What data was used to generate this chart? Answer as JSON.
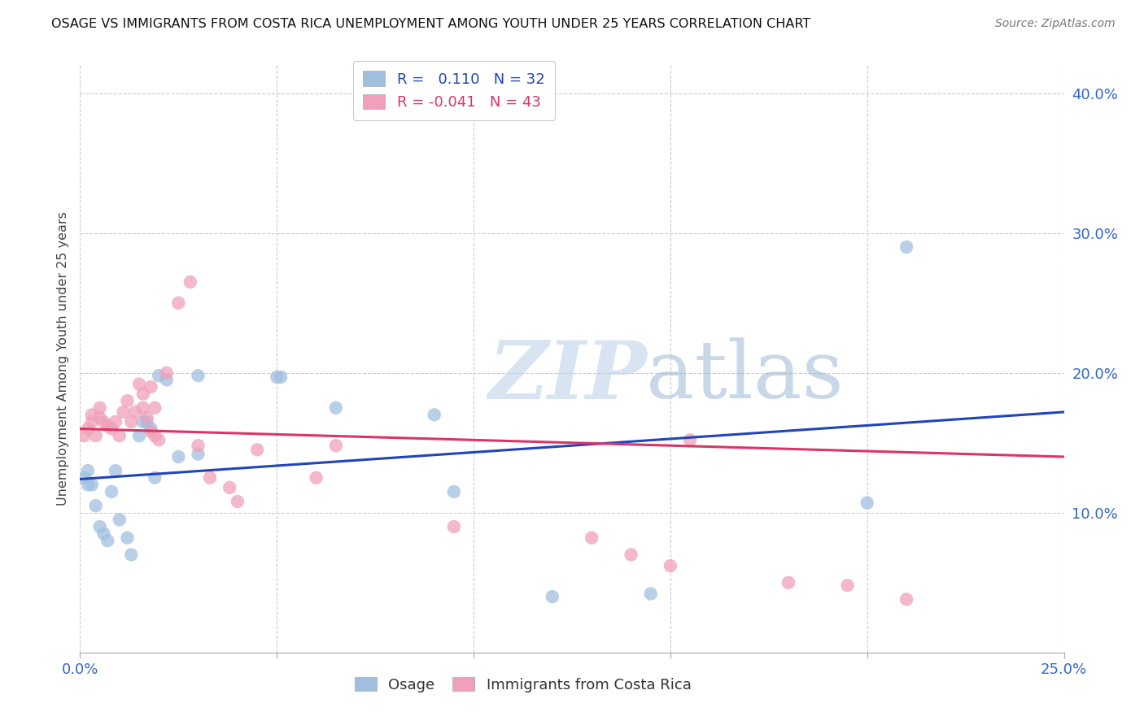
{
  "title": "OSAGE VS IMMIGRANTS FROM COSTA RICA UNEMPLOYMENT AMONG YOUTH UNDER 25 YEARS CORRELATION CHART",
  "source": "Source: ZipAtlas.com",
  "ylabel": "Unemployment Among Youth under 25 years",
  "xlim": [
    0.0,
    0.25
  ],
  "ylim": [
    0.0,
    0.42
  ],
  "xticks": [
    0.0,
    0.05,
    0.1,
    0.15,
    0.2,
    0.25
  ],
  "yticks": [
    0.0,
    0.1,
    0.2,
    0.3,
    0.4
  ],
  "xtick_labels": [
    "0.0%",
    "",
    "",
    "",
    "",
    "25.0%"
  ],
  "ytick_labels": [
    "",
    "10.0%",
    "20.0%",
    "30.0%",
    "40.0%"
  ],
  "blue_color": "#a0bfdf",
  "pink_color": "#f0a0b8",
  "blue_line_color": "#2244bb",
  "pink_line_color": "#dd3366",
  "watermark_zip": "ZIP",
  "watermark_atlas": "atlas",
  "osage_x": [
    0.001,
    0.002,
    0.002,
    0.003,
    0.004,
    0.005,
    0.006,
    0.007,
    0.008,
    0.009,
    0.01,
    0.012,
    0.013,
    0.015,
    0.016,
    0.017,
    0.018,
    0.019,
    0.02,
    0.022,
    0.025,
    0.03,
    0.03,
    0.05,
    0.051,
    0.065,
    0.09,
    0.095,
    0.12,
    0.145,
    0.2,
    0.21
  ],
  "osage_y": [
    0.125,
    0.12,
    0.13,
    0.12,
    0.105,
    0.09,
    0.085,
    0.08,
    0.115,
    0.13,
    0.095,
    0.082,
    0.07,
    0.155,
    0.165,
    0.165,
    0.16,
    0.125,
    0.198,
    0.195,
    0.14,
    0.198,
    0.142,
    0.197,
    0.197,
    0.175,
    0.17,
    0.115,
    0.04,
    0.042,
    0.107,
    0.29
  ],
  "costarica_x": [
    0.001,
    0.002,
    0.003,
    0.003,
    0.004,
    0.005,
    0.005,
    0.006,
    0.007,
    0.008,
    0.009,
    0.01,
    0.011,
    0.012,
    0.013,
    0.014,
    0.015,
    0.016,
    0.016,
    0.017,
    0.018,
    0.018,
    0.019,
    0.019,
    0.02,
    0.022,
    0.025,
    0.028,
    0.03,
    0.033,
    0.038,
    0.04,
    0.045,
    0.06,
    0.065,
    0.095,
    0.13,
    0.14,
    0.15,
    0.155,
    0.18,
    0.195,
    0.21
  ],
  "costarica_y": [
    0.155,
    0.16,
    0.17,
    0.165,
    0.155,
    0.168,
    0.175,
    0.165,
    0.162,
    0.16,
    0.165,
    0.155,
    0.172,
    0.18,
    0.165,
    0.172,
    0.192,
    0.175,
    0.185,
    0.168,
    0.158,
    0.19,
    0.155,
    0.175,
    0.152,
    0.2,
    0.25,
    0.265,
    0.148,
    0.125,
    0.118,
    0.108,
    0.145,
    0.125,
    0.148,
    0.09,
    0.082,
    0.07,
    0.062,
    0.152,
    0.05,
    0.048,
    0.038
  ]
}
